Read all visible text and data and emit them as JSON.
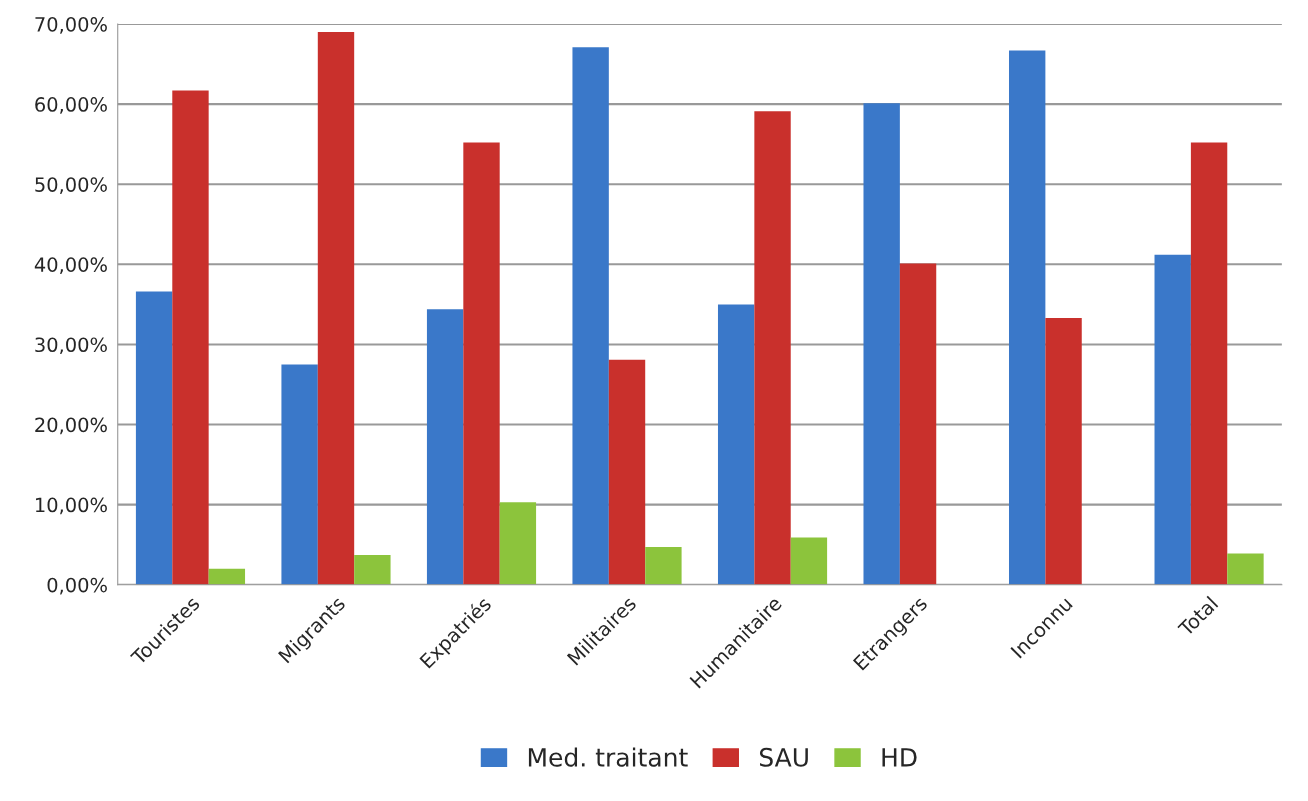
{
  "chart_data": {
    "type": "bar",
    "categories": [
      "Touristes",
      "Migrants",
      "Expatriés",
      "Militaires",
      "Humanitaire",
      "Etrangers",
      "Inconnu",
      "Total"
    ],
    "series": [
      {
        "name": "Med. traitant",
        "color": "#3a78c9",
        "values": [
          36.6,
          27.5,
          34.4,
          67.1,
          35.0,
          60.1,
          66.7,
          41.2
        ]
      },
      {
        "name": "SAU",
        "color": "#c9302c",
        "values": [
          61.7,
          69.0,
          55.2,
          28.1,
          59.1,
          40.1,
          33.3,
          55.2
        ]
      },
      {
        "name": "HD",
        "color": "#8cc43c",
        "values": [
          2.0,
          3.7,
          10.3,
          4.7,
          5.9,
          0,
          0,
          3.9
        ]
      }
    ],
    "ylim": [
      0,
      70
    ],
    "yticks": [
      {
        "value": 0,
        "label": "0,00%"
      },
      {
        "value": 10,
        "label": "10,00%"
      },
      {
        "value": 20,
        "label": "20,00%"
      },
      {
        "value": 30,
        "label": "30,00%"
      },
      {
        "value": 40,
        "label": "40,00%"
      },
      {
        "value": 50,
        "label": "50,00%"
      },
      {
        "value": 60,
        "label": "60,00%"
      },
      {
        "value": 70,
        "label": "70,00%"
      }
    ],
    "grid": "y",
    "legend": "bottom"
  }
}
